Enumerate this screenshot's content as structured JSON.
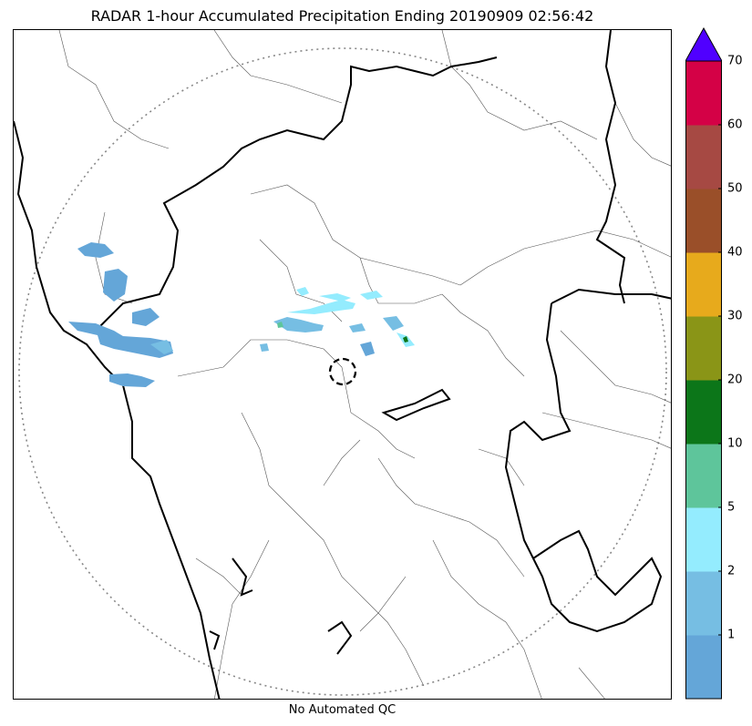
{
  "title": "RADAR 1-hour Accumulated Precipitation Ending 20190909 02:56:42",
  "footer": "No Automated QC",
  "colorbar": {
    "levels": [
      {
        "value": "1",
        "color": "#64a6d8"
      },
      {
        "value": "2",
        "color": "#76bee3"
      },
      {
        "value": "5",
        "color": "#94ecfe"
      },
      {
        "value": "10",
        "color": "#5ec59b"
      },
      {
        "value": "20",
        "color": "#0c7619"
      },
      {
        "value": "30",
        "color": "#8a9517"
      },
      {
        "value": "40",
        "color": "#e7aa1c"
      },
      {
        "value": "50",
        "color": "#9a4f29"
      },
      {
        "value": "60",
        "color": "#a64943"
      },
      {
        "value": "70",
        "color": "#d40146"
      }
    ],
    "extend_color": "#5000ff",
    "tick_labels": [
      "1",
      "2",
      "5",
      "10",
      "20",
      "30",
      "40",
      "50",
      "60",
      "70"
    ]
  },
  "colors": {
    "range_ring": "#888888",
    "state_border": "#000000",
    "district_border": "#555555"
  }
}
